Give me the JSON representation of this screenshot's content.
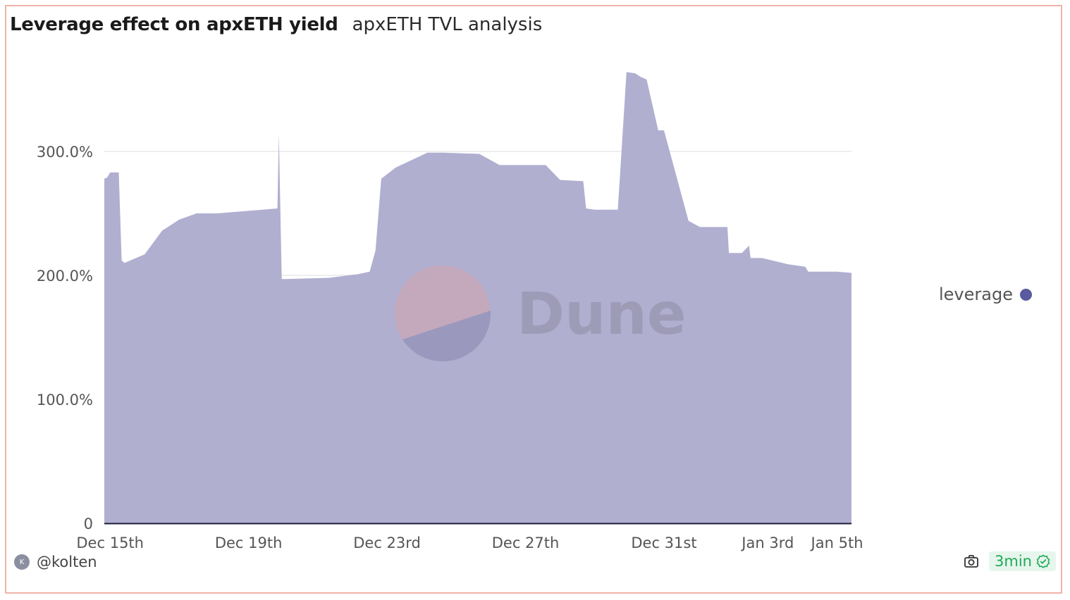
{
  "header": {
    "title": "Leverage effect on apxETH yield",
    "subtitle": "apxETH TVL analysis"
  },
  "footer": {
    "avatar_initial": "K",
    "author": "@kolten",
    "refresh": "3min",
    "camera_icon": "camera-icon",
    "check_icon": "check-badge-icon"
  },
  "watermark": {
    "text": "Dune"
  },
  "colors": {
    "area": "#b0afd0",
    "legend": "#5a5a9e",
    "refresh": "#1faa59"
  },
  "chart_data": {
    "type": "area",
    "title": "",
    "xlabel": "",
    "ylabel": "",
    "x_range": [
      "2023-12-14T20:00",
      "2024-01-05T10:00"
    ],
    "ylim": [
      0,
      3.8
    ],
    "y_ticks": [
      {
        "value": 0,
        "label": "0"
      },
      {
        "value": 1,
        "label": "100.0%"
      },
      {
        "value": 2,
        "label": "200.0%"
      },
      {
        "value": 3,
        "label": "300.0%"
      }
    ],
    "x_ticks": [
      {
        "value": "2023-12-15T00:00",
        "label": "Dec 15th"
      },
      {
        "value": "2023-12-19T00:00",
        "label": "Dec 19th"
      },
      {
        "value": "2023-12-23T00:00",
        "label": "Dec 23rd"
      },
      {
        "value": "2023-12-27T00:00",
        "label": "Dec 27th"
      },
      {
        "value": "2023-12-31T00:00",
        "label": "Dec 31st"
      },
      {
        "value": "2024-01-03T00:00",
        "label": "Jan 3rd"
      },
      {
        "value": "2024-01-05T00:00",
        "label": "Jan 5th"
      }
    ],
    "grid": true,
    "legend_position": "right",
    "series": [
      {
        "name": "leverage",
        "x": [
          "2023-12-14T20:00",
          "2023-12-14T22:00",
          "2023-12-15T00:00",
          "2023-12-15T06:00",
          "2023-12-15T08:00",
          "2023-12-15T10:00",
          "2023-12-15T12:00",
          "2023-12-15T14:00",
          "2023-12-16T00:00",
          "2023-12-16T12:00",
          "2023-12-17T00:00",
          "2023-12-17T12:00",
          "2023-12-17T16:00",
          "2023-12-18T02:00",
          "2023-12-19T20:00",
          "2023-12-19T21:00",
          "2023-12-19T23:00",
          "2023-12-20T02:00",
          "2023-12-21T08:00",
          "2023-12-22T04:00",
          "2023-12-22T12:00",
          "2023-12-22T16:00",
          "2023-12-22T20:00",
          "2023-12-23T06:00",
          "2023-12-24T04:00",
          "2023-12-24T16:00",
          "2023-12-25T16:00",
          "2023-12-26T06:00",
          "2023-12-27T14:00",
          "2023-12-28T00:00",
          "2023-12-28T16:00",
          "2023-12-28T18:00",
          "2023-12-29T00:00",
          "2023-12-29T16:00",
          "2023-12-29T22:00",
          "2023-12-30T04:00",
          "2023-12-30T08:00",
          "2023-12-30T12:00",
          "2023-12-30T20:00",
          "2023-12-31T00:00",
          "2023-12-31T17:00",
          "2024-01-01T01:00",
          "2024-01-01T20:00",
          "2024-01-01T21:00",
          "2024-01-02T06:00",
          "2024-01-02T11:00",
          "2024-01-02T12:00",
          "2024-01-02T20:00",
          "2024-01-03T14:00",
          "2024-01-04T02:00",
          "2024-01-04T04:00",
          "2024-01-05T00:00",
          "2024-01-05T10:00"
        ],
        "values": [
          2.78,
          2.79,
          2.83,
          2.83,
          2.12,
          2.1,
          2.11,
          2.12,
          2.17,
          2.36,
          2.45,
          2.5,
          2.5,
          2.5,
          2.54,
          3.14,
          1.97,
          1.97,
          1.98,
          2.01,
          2.03,
          2.2,
          2.78,
          2.87,
          2.99,
          2.99,
          2.98,
          2.89,
          2.89,
          2.77,
          2.76,
          2.54,
          2.53,
          2.53,
          3.64,
          3.63,
          3.6,
          3.58,
          3.17,
          3.17,
          2.44,
          2.39,
          2.39,
          2.18,
          2.18,
          2.24,
          2.14,
          2.14,
          2.09,
          2.07,
          2.03,
          2.03,
          2.02
        ]
      }
    ]
  }
}
